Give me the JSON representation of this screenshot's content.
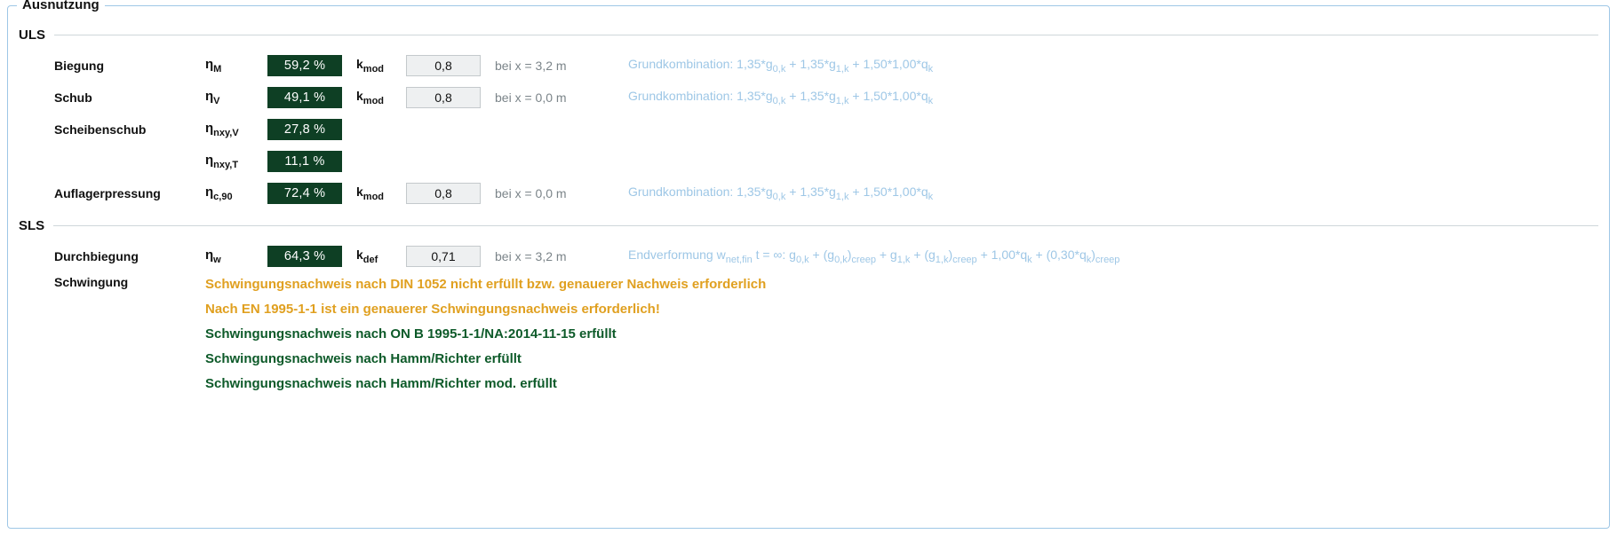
{
  "group_title": "Ausnutzung",
  "colors": {
    "border": "#9ec7e6",
    "pct_bg": "#0e3f24",
    "pct_fg": "#ffffff",
    "kbox_bg": "#eef0f1",
    "kbox_border": "#c4c9cc",
    "muted": "#7b8489",
    "combo": "#9ec7e6",
    "warn": "#e0a020",
    "ok": "#0d5a29",
    "rule": "#cfd6da"
  },
  "sections": {
    "uls": {
      "label": "ULS"
    },
    "sls": {
      "label": "SLS"
    }
  },
  "uls": {
    "biegung": {
      "name": "Biegung",
      "sym_base": "η",
      "sym_sub": "M",
      "pct": "59,2 %",
      "k_label_base": "k",
      "k_label_sub": "mod",
      "k_val": "0,8",
      "loc": "bei x = 3,2 m",
      "combo_html": "Grundkombination: 1,35*g<sub>0,k</sub> + 1,35*g<sub>1,k</sub> + 1,50*1,00*q<sub>k</sub>"
    },
    "schub": {
      "name": "Schub",
      "sym_base": "η",
      "sym_sub": "V",
      "pct": "49,1 %",
      "k_label_base": "k",
      "k_label_sub": "mod",
      "k_val": "0,8",
      "loc": "bei x = 0,0 m",
      "combo_html": "Grundkombination: 1,35*g<sub>0,k</sub> + 1,35*g<sub>1,k</sub> + 1,50*1,00*q<sub>k</sub>"
    },
    "scheibenschub_v": {
      "name": "Scheibenschub",
      "sym_base": "η",
      "sym_sub": "nxy,V",
      "pct": "27,8 %"
    },
    "scheibenschub_t": {
      "name": "",
      "sym_base": "η",
      "sym_sub": "nxy,T",
      "pct": "11,1 %"
    },
    "auflagerpressung": {
      "name": "Auflagerpressung",
      "sym_base": "η",
      "sym_sub": "c,90",
      "pct": "72,4 %",
      "k_label_base": "k",
      "k_label_sub": "mod",
      "k_val": "0,8",
      "loc": "bei x = 0,0 m",
      "combo_html": "Grundkombination: 1,35*g<sub>0,k</sub> + 1,35*g<sub>1,k</sub> + 1,50*1,00*q<sub>k</sub>"
    }
  },
  "sls": {
    "durchbiegung": {
      "name": "Durchbiegung",
      "sym_base": "η",
      "sym_sub": "w",
      "pct": "64,3 %",
      "k_label_base": "k",
      "k_label_sub": "def",
      "k_val": "0,71",
      "loc": "bei x = 3,2 m",
      "combo_html": "Endverformung w<sub>net,fin</sub> t = ∞: g<sub>0,k</sub> + (g<sub>0,k</sub>)<sub>creep</sub> + g<sub>1,k</sub> + (g<sub>1,k</sub>)<sub>creep</sub> + 1,00*q<sub>k</sub> + (0,30*q<sub>k</sub>)<sub>creep</sub>"
    },
    "schwingung": {
      "name": "Schwingung",
      "messages": [
        {
          "cls": "warn",
          "text": "Schwingungsnachweis nach DIN 1052 nicht erfüllt bzw. genauerer Nachweis erforderlich"
        },
        {
          "cls": "warn",
          "text": "Nach EN 1995-1-1 ist ein genauerer Schwingungsnachweis erforderlich!"
        },
        {
          "cls": "ok",
          "text": "Schwingungsnachweis nach ON B 1995-1-1/NA:2014-11-15 erfüllt"
        },
        {
          "cls": "ok",
          "text": "Schwingungsnachweis nach Hamm/Richter erfüllt"
        },
        {
          "cls": "ok",
          "text": "Schwingungsnachweis nach Hamm/Richter mod. erfüllt"
        }
      ]
    }
  }
}
